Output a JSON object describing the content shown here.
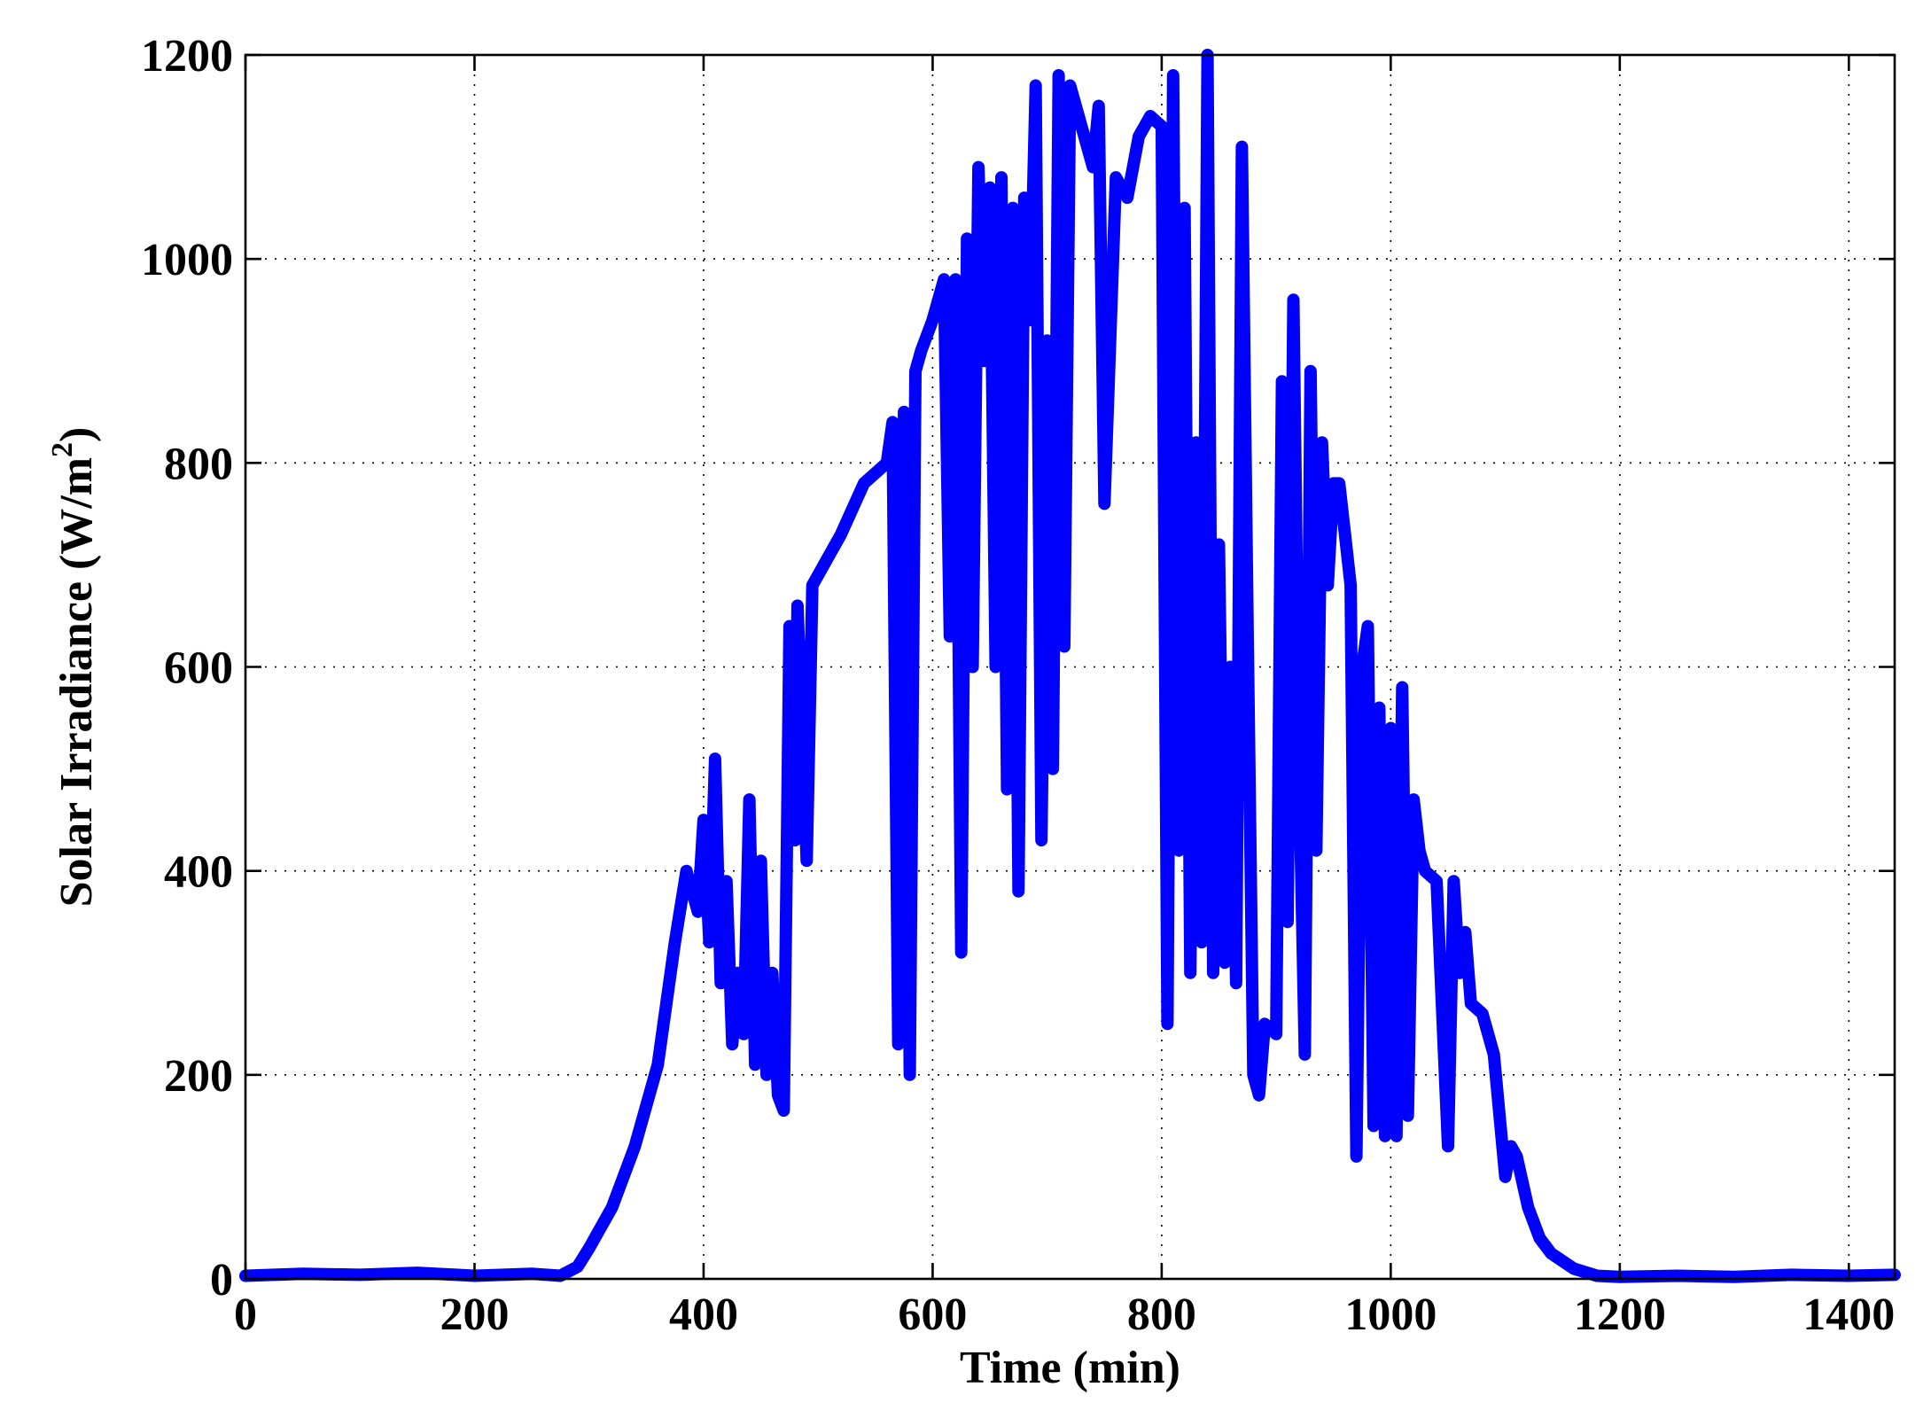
{
  "chart_data": {
    "type": "line",
    "title": "",
    "xlabel": "Time (min)",
    "ylabel_text": "Solar Irradiance (W/m",
    "ylabel_sup": "2",
    "ylabel_close": ")",
    "xlim": [
      0,
      1440
    ],
    "ylim": [
      0,
      1200
    ],
    "xticks": [
      0,
      200,
      400,
      600,
      800,
      1000,
      1200,
      1400
    ],
    "yticks": [
      0,
      200,
      400,
      600,
      800,
      1000,
      1200
    ],
    "grid": true,
    "legend": "none",
    "series": [
      {
        "color": "#0000ff",
        "x": [
          0,
          50,
          100,
          150,
          200,
          250,
          275,
          290,
          300,
          320,
          340,
          360,
          375,
          385,
          395,
          400,
          405,
          410,
          415,
          420,
          425,
          430,
          435,
          440,
          445,
          450,
          455,
          460,
          465,
          470,
          475,
          480,
          482,
          490,
          495,
          500,
          520,
          540,
          560,
          565,
          570,
          575,
          580,
          585,
          590,
          600,
          610,
          615,
          620,
          625,
          630,
          635,
          640,
          645,
          650,
          655,
          660,
          665,
          670,
          675,
          680,
          685,
          690,
          695,
          700,
          705,
          710,
          715,
          720,
          730,
          740,
          745,
          750,
          760,
          770,
          780,
          790,
          800,
          805,
          810,
          815,
          820,
          825,
          830,
          835,
          840,
          845,
          850,
          855,
          860,
          865,
          870,
          875,
          880,
          885,
          890,
          900,
          905,
          910,
          915,
          920,
          925,
          930,
          935,
          940,
          945,
          950,
          955,
          960,
          965,
          970,
          975,
          980,
          985,
          990,
          995,
          1000,
          1005,
          1010,
          1015,
          1020,
          1025,
          1030,
          1040,
          1050,
          1055,
          1060,
          1065,
          1070,
          1080,
          1090,
          1100,
          1105,
          1110,
          1120,
          1130,
          1140,
          1160,
          1180,
          1200,
          1250,
          1300,
          1350,
          1400,
          1440
        ],
        "y": [
          3,
          5,
          4,
          6,
          3,
          5,
          3,
          12,
          30,
          70,
          130,
          210,
          330,
          400,
          360,
          450,
          330,
          510,
          290,
          390,
          230,
          300,
          240,
          470,
          210,
          410,
          200,
          300,
          180,
          165,
          640,
          430,
          660,
          410,
          680,
          690,
          730,
          780,
          800,
          840,
          230,
          850,
          200,
          890,
          910,
          940,
          980,
          630,
          980,
          320,
          1020,
          600,
          1090,
          900,
          1070,
          600,
          1080,
          480,
          1050,
          380,
          1060,
          940,
          1170,
          430,
          920,
          500,
          1180,
          620,
          1170,
          1130,
          1090,
          1150,
          760,
          1080,
          1060,
          1120,
          1140,
          1130,
          250,
          1180,
          420,
          1050,
          300,
          820,
          330,
          1200,
          300,
          720,
          310,
          600,
          290,
          1110,
          640,
          200,
          180,
          250,
          240,
          880,
          350,
          960,
          500,
          220,
          890,
          420,
          820,
          680,
          780,
          780,
          730,
          680,
          120,
          600,
          640,
          150,
          560,
          140,
          540,
          140,
          580,
          160,
          470,
          420,
          400,
          390,
          130,
          390,
          300,
          340,
          270,
          260,
          220,
          100,
          130,
          120,
          70,
          40,
          25,
          10,
          3,
          2,
          3,
          2,
          4,
          3,
          4
        ]
      }
    ]
  }
}
